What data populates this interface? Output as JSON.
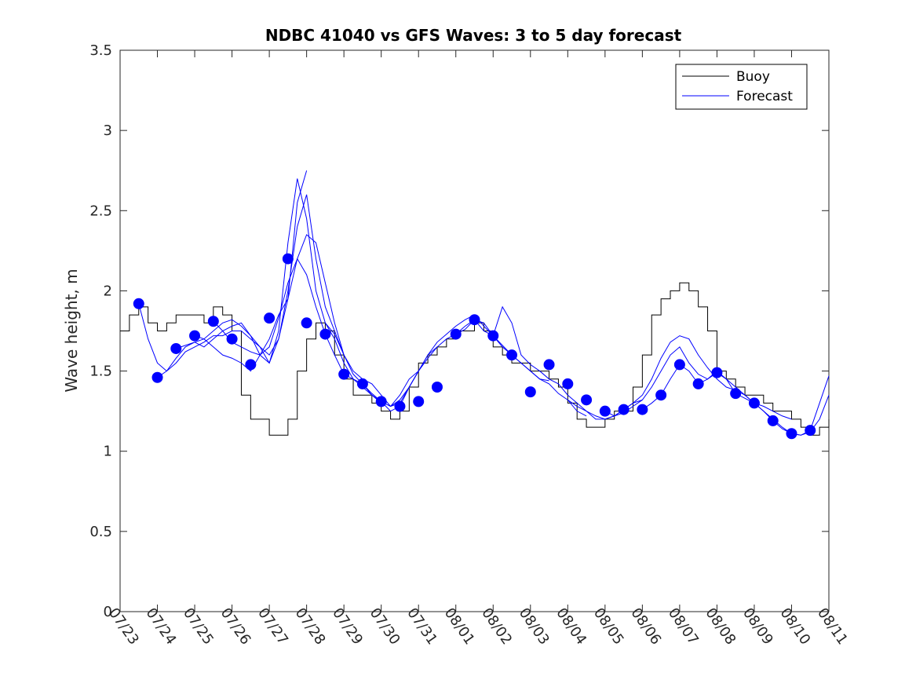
{
  "chart_data": {
    "type": "line",
    "title": "NDBC 41040 vs GFS Waves: 3 to 5 day forecast",
    "xlabel": "",
    "ylabel": "Wave height, m",
    "x_ticks": [
      "07/23",
      "07/24",
      "07/25",
      "07/26",
      "07/27",
      "07/28",
      "07/29",
      "07/30",
      "07/31",
      "08/01",
      "08/02",
      "08/03",
      "08/04",
      "08/05",
      "08/06",
      "08/07",
      "08/08",
      "08/09",
      "08/10",
      "08/11"
    ],
    "xlim_days": [
      0,
      19
    ],
    "ylim": [
      0,
      3.5
    ],
    "y_ticks": [
      "0",
      "0.5",
      "1",
      "1.5",
      "2",
      "2.5",
      "3",
      "3.5"
    ],
    "y_tick_values": [
      0,
      0.5,
      1,
      1.5,
      2,
      2.5,
      3,
      3.5
    ],
    "legend": {
      "position": "top-right",
      "entries": [
        "Buoy",
        "Forecast"
      ]
    },
    "colors": {
      "buoy": "#000000",
      "forecast": "#0000ff",
      "markers": "#0000ff"
    },
    "buoy": {
      "name": "Buoy",
      "x": [
        0,
        0.25,
        0.5,
        0.75,
        1,
        1.25,
        1.5,
        1.75,
        2,
        2.25,
        2.5,
        2.75,
        3,
        3.25,
        3.5,
        3.75,
        4,
        4.25,
        4.5,
        4.75,
        5,
        5.25,
        5.5,
        5.75,
        6,
        6.25,
        6.5,
        6.75,
        7,
        7.25,
        7.5,
        7.75,
        8,
        8.25,
        8.5,
        8.75,
        9,
        9.25,
        9.5,
        9.75,
        10,
        10.25,
        10.5,
        10.75,
        11,
        11.25,
        11.5,
        11.75,
        12,
        12.25,
        12.5,
        12.75,
        13,
        13.25,
        13.5,
        13.75,
        14,
        14.25,
        14.5,
        14.75,
        15,
        15.25,
        15.5,
        15.75,
        16,
        16.25,
        16.5,
        16.75,
        17,
        17.25,
        17.5,
        17.75,
        18,
        18.25,
        18.5,
        18.75,
        19
      ],
      "y": [
        1.75,
        1.85,
        1.9,
        1.8,
        1.75,
        1.8,
        1.85,
        1.85,
        1.85,
        1.8,
        1.9,
        1.85,
        1.75,
        1.35,
        1.2,
        1.2,
        1.1,
        1.1,
        1.2,
        1.5,
        1.7,
        1.8,
        1.75,
        1.6,
        1.45,
        1.35,
        1.35,
        1.3,
        1.25,
        1.2,
        1.25,
        1.4,
        1.55,
        1.6,
        1.65,
        1.7,
        1.75,
        1.75,
        1.8,
        1.75,
        1.65,
        1.6,
        1.55,
        1.55,
        1.5,
        1.5,
        1.45,
        1.4,
        1.3,
        1.2,
        1.15,
        1.15,
        1.2,
        1.25,
        1.25,
        1.4,
        1.6,
        1.85,
        1.95,
        2.0,
        2.05,
        2.0,
        1.9,
        1.75,
        1.5,
        1.45,
        1.4,
        1.35,
        1.35,
        1.3,
        1.25,
        1.25,
        1.2,
        1.15,
        1.1,
        1.15,
        1.2
      ]
    },
    "forecast": [
      {
        "x": [
          0.5,
          0.75,
          1,
          1.25,
          1.5,
          1.75,
          2,
          2.25,
          2.5,
          2.75,
          3,
          3.25,
          3.5,
          3.75,
          4,
          4.25,
          4.5,
          4.75,
          5
        ],
        "y": [
          1.92,
          1.7,
          1.55,
          1.5,
          1.55,
          1.62,
          1.65,
          1.68,
          1.72,
          1.72,
          1.75,
          1.75,
          1.7,
          1.65,
          1.6,
          1.7,
          1.95,
          2.55,
          2.75
        ]
      },
      {
        "x": [
          1,
          1.25,
          1.5,
          1.75,
          2,
          2.25,
          2.5,
          2.75,
          3,
          3.25,
          3.5,
          3.75,
          4,
          4.25,
          4.5,
          4.75,
          5,
          5.25,
          5.5,
          5.75,
          6
        ],
        "y": [
          1.46,
          1.5,
          1.58,
          1.65,
          1.68,
          1.65,
          1.7,
          1.75,
          1.78,
          1.8,
          1.72,
          1.65,
          1.55,
          1.7,
          2.0,
          2.4,
          2.6,
          2.2,
          1.9,
          1.75,
          1.6
        ]
      },
      {
        "x": [
          1.5,
          1.75,
          2,
          2.25,
          2.5,
          2.75,
          3,
          3.25,
          3.5,
          3.75,
          4,
          4.25,
          4.5,
          4.75,
          5,
          5.25,
          5.5,
          5.75,
          6,
          6.25,
          6.5,
          6.75,
          7
        ],
        "y": [
          1.64,
          1.66,
          1.68,
          1.7,
          1.75,
          1.8,
          1.82,
          1.78,
          1.72,
          1.6,
          1.55,
          1.75,
          2.3,
          2.7,
          2.45,
          2.0,
          1.8,
          1.7,
          1.55,
          1.45,
          1.4,
          1.35,
          1.3
        ]
      },
      {
        "x": [
          2,
          2.25,
          2.5,
          2.75,
          3,
          3.25,
          3.5,
          3.75,
          4,
          4.25,
          4.5,
          4.75,
          5,
          5.25,
          5.5,
          5.75,
          6,
          6.25,
          6.5,
          6.75,
          7,
          7.25,
          7.5,
          7.75,
          8
        ],
        "y": [
          1.72,
          1.7,
          1.65,
          1.6,
          1.58,
          1.55,
          1.5,
          1.6,
          1.65,
          1.83,
          2.05,
          2.2,
          2.35,
          2.3,
          2.05,
          1.8,
          1.6,
          1.5,
          1.45,
          1.42,
          1.35,
          1.28,
          1.3,
          1.4,
          1.5
        ]
      },
      {
        "x": [
          2.5,
          2.75,
          3,
          3.25,
          3.5,
          3.75,
          4,
          4.25,
          4.5,
          4.75,
          5,
          5.25,
          5.5,
          5.75,
          6,
          6.25,
          6.5,
          6.75,
          7,
          7.25,
          7.5,
          7.75,
          8,
          8.25,
          8.5
        ],
        "y": [
          1.81,
          1.75,
          1.68,
          1.65,
          1.62,
          1.6,
          1.7,
          1.85,
          1.95,
          2.2,
          2.1,
          1.9,
          1.73,
          1.6,
          1.48,
          1.45,
          1.42,
          1.35,
          1.31,
          1.28,
          1.35,
          1.45,
          1.5,
          1.6,
          1.65
        ]
      },
      {
        "x": [
          5.5,
          5.75,
          6,
          6.25,
          6.5,
          6.75,
          7,
          7.25,
          7.5,
          7.75,
          8,
          8.25,
          8.5,
          8.75,
          9,
          9.25,
          9.5,
          9.75,
          10,
          10.25,
          10.5,
          10.75,
          11,
          11.25,
          11.5
        ],
        "y": [
          1.8,
          1.73,
          1.6,
          1.48,
          1.42,
          1.36,
          1.31,
          1.28,
          1.32,
          1.4,
          1.5,
          1.6,
          1.68,
          1.73,
          1.78,
          1.82,
          1.85,
          1.78,
          1.72,
          1.65,
          1.6,
          1.55,
          1.5,
          1.45,
          1.44
        ]
      },
      {
        "x": [
          7,
          7.25,
          7.5,
          7.75,
          8,
          8.25,
          8.5,
          8.75,
          9,
          9.25,
          9.5,
          9.75,
          10,
          10.25,
          10.5,
          10.75,
          11,
          11.25,
          11.5,
          11.75,
          12,
          12.25,
          12.5
        ],
        "y": [
          1.31,
          1.25,
          1.28,
          1.4,
          1.5,
          1.58,
          1.65,
          1.7,
          1.73,
          1.76,
          1.82,
          1.8,
          1.72,
          1.66,
          1.6,
          1.55,
          1.5,
          1.45,
          1.42,
          1.36,
          1.32,
          1.25,
          1.22
        ]
      },
      {
        "x": [
          9,
          9.25,
          9.5,
          9.75,
          10,
          10.25,
          10.5,
          10.75,
          11,
          11.25,
          11.5,
          11.75,
          12,
          12.25,
          12.5,
          12.75,
          13,
          13.25,
          13.5,
          13.75,
          14
        ],
        "y": [
          1.73,
          1.78,
          1.82,
          1.75,
          1.72,
          1.9,
          1.8,
          1.6,
          1.54,
          1.5,
          1.45,
          1.42,
          1.35,
          1.3,
          1.25,
          1.22,
          1.2,
          1.22,
          1.26,
          1.3,
          1.32
        ]
      },
      {
        "x": [
          12,
          12.25,
          12.5,
          12.75,
          13,
          13.25,
          13.5,
          13.75,
          14,
          14.25,
          14.5,
          14.75,
          15,
          15.25,
          15.5,
          15.75,
          16,
          16.25,
          16.5,
          16.75,
          17,
          17.25,
          17.5,
          17.75,
          18
        ],
        "y": [
          1.32,
          1.28,
          1.25,
          1.2,
          1.2,
          1.22,
          1.26,
          1.3,
          1.35,
          1.45,
          1.58,
          1.68,
          1.72,
          1.7,
          1.6,
          1.52,
          1.45,
          1.4,
          1.38,
          1.35,
          1.3,
          1.28,
          1.25,
          1.22,
          1.2
        ]
      },
      {
        "x": [
          13,
          13.25,
          13.5,
          13.75,
          14,
          14.25,
          14.5,
          14.75,
          15,
          15.25,
          15.5,
          15.75,
          16,
          16.25,
          16.5,
          16.75,
          17,
          17.25,
          17.5,
          17.75,
          18,
          18.25,
          18.5,
          18.75,
          19
        ],
        "y": [
          1.25,
          1.22,
          1.24,
          1.28,
          1.32,
          1.4,
          1.5,
          1.6,
          1.65,
          1.55,
          1.48,
          1.45,
          1.5,
          1.45,
          1.4,
          1.35,
          1.3,
          1.25,
          1.2,
          1.15,
          1.11,
          1.1,
          1.12,
          1.2,
          1.35
        ]
      },
      {
        "x": [
          14,
          14.25,
          14.5,
          14.75,
          15,
          15.25,
          15.5,
          15.75,
          16,
          16.25,
          16.5,
          16.75,
          17,
          17.25,
          17.5,
          17.75,
          18,
          18.25,
          18.5,
          18.75,
          19
        ],
        "y": [
          1.26,
          1.3,
          1.35,
          1.45,
          1.54,
          1.5,
          1.42,
          1.45,
          1.49,
          1.45,
          1.36,
          1.33,
          1.3,
          1.25,
          1.19,
          1.14,
          1.11,
          1.1,
          1.13,
          1.3,
          1.47
        ]
      }
    ],
    "markers": {
      "x": [
        0.5,
        1,
        1.5,
        2,
        2.5,
        3,
        3.5,
        4,
        4.5,
        5,
        5.5,
        6,
        6.5,
        7,
        7.5,
        8,
        8.5,
        9,
        9.5,
        10,
        10.5,
        11,
        11.5,
        12,
        12.5,
        13,
        13.5,
        14,
        14.5,
        15,
        15.5,
        16,
        16.5,
        17,
        17.5,
        18,
        18.5
      ],
      "y": [
        1.92,
        1.46,
        1.64,
        1.72,
        1.81,
        1.7,
        1.54,
        1.83,
        2.2,
        1.8,
        1.73,
        1.48,
        1.42,
        1.31,
        1.28,
        1.31,
        1.4,
        1.73,
        1.82,
        1.72,
        1.6,
        1.37,
        1.54,
        1.42,
        1.32,
        1.25,
        1.26,
        1.26,
        1.35,
        1.54,
        1.42,
        1.49,
        1.36,
        1.3,
        1.19,
        1.11,
        1.13
      ]
    }
  }
}
